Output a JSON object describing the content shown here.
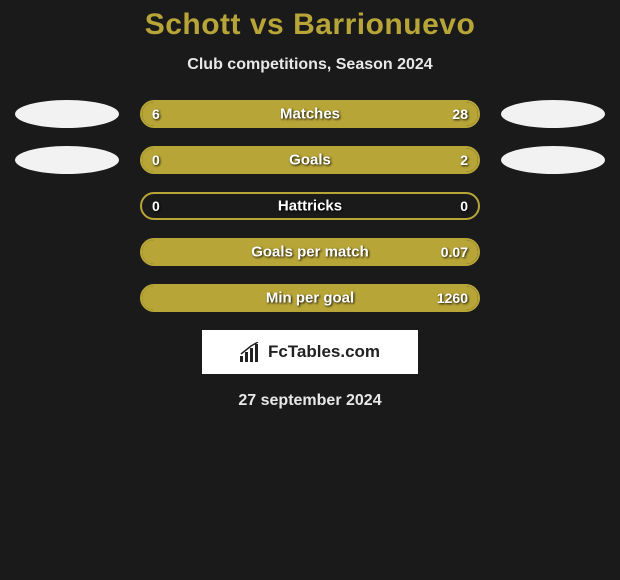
{
  "title": "Schott vs Barrionuevo",
  "subtitle": "Club competitions, Season 2024",
  "date": "27 september 2024",
  "colors": {
    "background": "#1a1a1a",
    "accent": "#b8a537",
    "text_light": "#e8e8e8",
    "bar_text": "#ffffff",
    "avatar_bg": "#f2f2f2",
    "logo_bg": "#ffffff",
    "logo_text": "#222222"
  },
  "bar_style": {
    "track_width": 340,
    "track_height": 28,
    "border_radius": 16,
    "border_width": 2,
    "font_size_label": 15,
    "font_size_value": 14
  },
  "avatar": {
    "width": 104,
    "height": 28
  },
  "logo": {
    "text": "FcTables.com"
  },
  "stats": [
    {
      "label": "Matches",
      "left_value": "6",
      "right_value": "28",
      "left_pct": 18,
      "right_pct": 82,
      "show_left_avatar": true,
      "show_right_avatar": true
    },
    {
      "label": "Goals",
      "left_value": "0",
      "right_value": "2",
      "left_pct": 0,
      "right_pct": 100,
      "show_left_avatar": true,
      "show_right_avatar": true
    },
    {
      "label": "Hattricks",
      "left_value": "0",
      "right_value": "0",
      "left_pct": 0,
      "right_pct": 0,
      "show_left_avatar": false,
      "show_right_avatar": false
    },
    {
      "label": "Goals per match",
      "left_value": "",
      "right_value": "0.07",
      "left_pct": 0,
      "right_pct": 100,
      "show_left_avatar": false,
      "show_right_avatar": false
    },
    {
      "label": "Min per goal",
      "left_value": "",
      "right_value": "1260",
      "left_pct": 0,
      "right_pct": 100,
      "show_left_avatar": false,
      "show_right_avatar": false
    }
  ]
}
